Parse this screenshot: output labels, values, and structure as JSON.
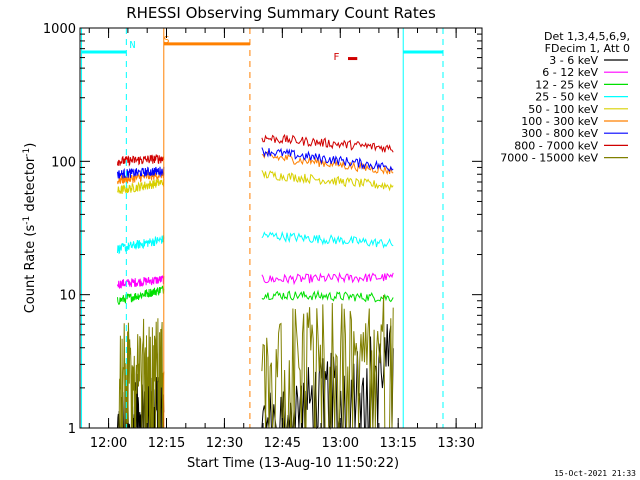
{
  "chart_data": {
    "type": "line",
    "title": "RHESSI Observing Summary Count Rates",
    "xlabel": "Start Time (13-Aug-10 11:50:22)",
    "ylabel": "Count Rate (s",
    "ylabel_sup1": "-1",
    "ylabel_mid": " detector",
    "ylabel_sup2": "-1",
    "ylabel_end": ")",
    "y_scale": "log",
    "ylim": [
      1,
      1000
    ],
    "xlim_minutes": [
      -7.4,
      96.7
    ],
    "x_ticks": [
      {
        "label": "12:00",
        "minutes": 0
      },
      {
        "label": "12:15",
        "minutes": 15
      },
      {
        "label": "12:30",
        "minutes": 30
      },
      {
        "label": "12:45",
        "minutes": 45
      },
      {
        "label": "13:00",
        "minutes": 60
      },
      {
        "label": "13:15",
        "minutes": 75
      },
      {
        "label": "13:30",
        "minutes": 90
      }
    ],
    "y_ticks": [
      {
        "label": "1",
        "value": 1
      },
      {
        "label": "10",
        "value": 10
      },
      {
        "label": "100",
        "value": 100
      },
      {
        "label": "1000",
        "value": 1000
      }
    ],
    "legend_header": [
      "Det 1,3,4,5,6,9,",
      "FDecim 1, Att 0"
    ],
    "legend_position": "right",
    "series": [
      {
        "name": "3 - 6 keV",
        "color": "#000000",
        "seg1": [
          1,
          2
        ],
        "seg2": [
          1,
          3.5
        ]
      },
      {
        "name": "6 - 12 keV",
        "color": "#ff00ff",
        "seg1": [
          12,
          13
        ],
        "seg2": [
          13,
          13.5
        ]
      },
      {
        "name": "12 - 25 keV",
        "color": "#00e000",
        "seg1": [
          9,
          11
        ],
        "seg2": [
          10,
          9.5
        ]
      },
      {
        "name": "25 - 50 keV",
        "color": "#00ffff",
        "seg1": [
          22,
          26
        ],
        "seg2": [
          28,
          24
        ]
      },
      {
        "name": "50 - 100 keV",
        "color": "#d8d000",
        "seg1": [
          60,
          70
        ],
        "seg2": [
          80,
          65
        ]
      },
      {
        "name": "100 - 300 keV",
        "color": "#ff8000",
        "seg1": [
          72,
          80
        ],
        "seg2": [
          110,
          85
        ]
      },
      {
        "name": "300 - 800 keV",
        "color": "#0000ff",
        "seg1": [
          80,
          85
        ],
        "seg2": [
          120,
          90
        ]
      },
      {
        "name": "800 - 7000 keV",
        "color": "#d00000",
        "seg1": [
          100,
          105
        ],
        "seg2": [
          150,
          125
        ]
      },
      {
        "name": "7000 - 15000 keV",
        "color": "#808000",
        "seg1": [
          3.2,
          3.8
        ],
        "seg2": [
          4,
          5.5
        ]
      }
    ],
    "segments_minutes": [
      [
        2.3,
        14.3
      ],
      [
        39.7,
        73.7
      ]
    ],
    "annotations": [
      {
        "label": "N",
        "color": "#00ffff",
        "minutes": 6.2
      },
      {
        "label": "S",
        "color": "#ff8000",
        "minutes": 15.0
      },
      {
        "label": "F",
        "color": "#d00000",
        "minutes": 59.0
      }
    ],
    "orange_bar_minutes": [
      14.3,
      36.6
    ],
    "orange_bar_value": 760,
    "red_mark_minutes": [
      62.0,
      64.4
    ],
    "cyan_bar1_minutes": [
      -7.0,
      4.6
    ],
    "cyan_bar2_minutes": [
      76.3,
      86.6
    ],
    "cyan_bar_value": 660,
    "cyan_solid_lines_minutes": [
      -7.0,
      76.3
    ],
    "cyan_dashed_lines_minutes": [
      4.6,
      86.6
    ],
    "orange_solid_lines_minutes": [
      14.3
    ],
    "orange_dashed_lines_minutes": [
      36.6
    ],
    "black_cutoff_minutes": [
      4.6
    ],
    "footer_date": "15-Oct-2021 21:33"
  }
}
